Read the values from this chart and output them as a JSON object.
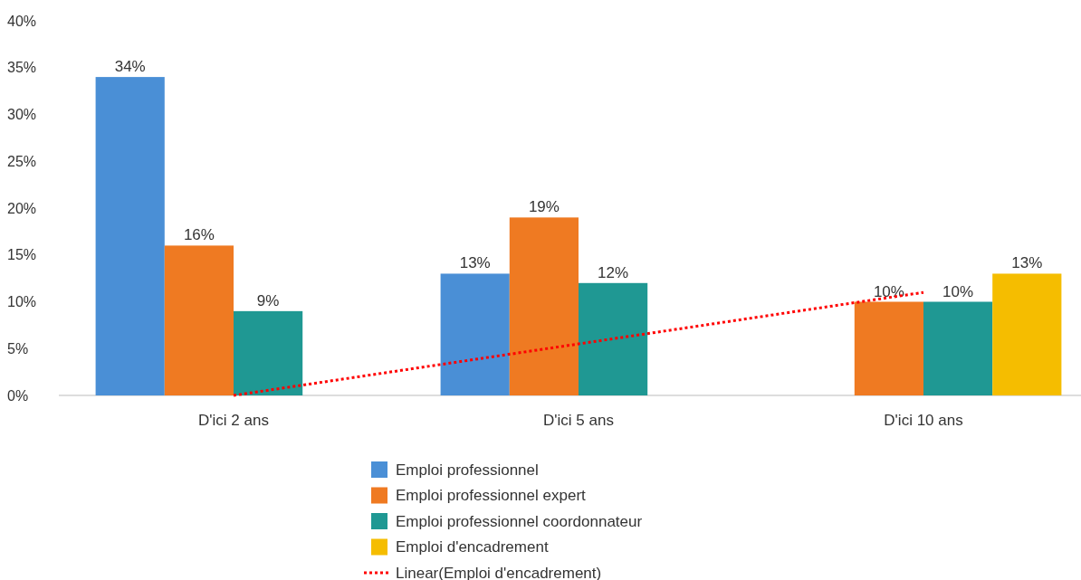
{
  "chart_data": {
    "type": "bar",
    "categories": [
      "D'ici 2 ans",
      "D'ici 5 ans",
      "D'ici 10 ans"
    ],
    "series": [
      {
        "name": "Emploi professionnel",
        "color": "#4a8fd6",
        "values": [
          34,
          13,
          null
        ],
        "value_labels": [
          "34%",
          "13%",
          null
        ]
      },
      {
        "name": "Emploi professionnel expert",
        "color": "#ef7a22",
        "values": [
          16,
          19,
          10
        ],
        "value_labels": [
          "16%",
          "19%",
          "10%"
        ]
      },
      {
        "name": "Emploi professionnel coordonnateur",
        "color": "#1f9893",
        "values": [
          9,
          12,
          10
        ],
        "value_labels": [
          "9%",
          "12%",
          "10%"
        ]
      },
      {
        "name": "Emploi d'encadrement",
        "color": "#f5bd00",
        "values": [
          null,
          null,
          13
        ],
        "value_labels": [
          null,
          null,
          "13%"
        ]
      },
      {
        "name": "Linear(Emploi d'encadrement)",
        "type": "line",
        "color": "#ff0000",
        "line_style": "dotted",
        "values": [
          0,
          5.5,
          11
        ]
      }
    ],
    "ylim": [
      0,
      40
    ],
    "yticks": [
      {
        "value": 0,
        "label": "0%"
      },
      {
        "value": 5,
        "label": "5%"
      },
      {
        "value": 10,
        "label": "10%"
      },
      {
        "value": 15,
        "label": "15%"
      },
      {
        "value": 20,
        "label": "20%"
      },
      {
        "value": 25,
        "label": "25%"
      },
      {
        "value": 30,
        "label": "30%"
      },
      {
        "value": 35,
        "label": "35%"
      },
      {
        "value": 40,
        "label": "40%"
      }
    ],
    "grid": false,
    "legend": "bottom"
  }
}
